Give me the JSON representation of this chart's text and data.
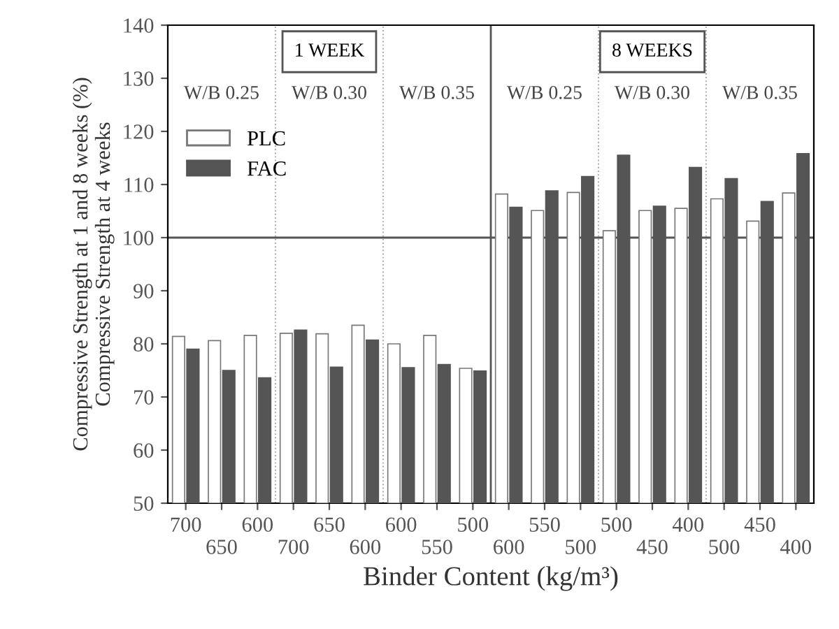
{
  "chart_data": {
    "type": "bar",
    "xlabel": "Binder Content (kg/m³)",
    "ylabel": "Compressive Strength at 1 and 8 weeks (%)\nCompressive Strength at 4 weeks",
    "categories": [
      "700",
      "650",
      "600",
      "700",
      "650",
      "600",
      "600",
      "550",
      "500",
      "600",
      "550",
      "500",
      "500",
      "450",
      "400",
      "500",
      "450",
      "400"
    ],
    "series": [
      {
        "name": "PLC",
        "color": "#ffffff",
        "values": [
          81.4,
          80.6,
          81.6,
          82.0,
          81.9,
          83.5,
          80.0,
          81.6,
          75.4,
          108.2,
          105.1,
          108.5,
          101.3,
          105.1,
          105.5,
          107.3,
          103.1,
          108.4
        ]
      },
      {
        "name": "FAC",
        "color": "#555555",
        "values": [
          79.0,
          75.0,
          73.6,
          82.6,
          75.6,
          80.7,
          75.5,
          76.1,
          74.9,
          105.7,
          108.8,
          111.5,
          115.5,
          105.9,
          113.2,
          111.1,
          106.8,
          115.8
        ]
      }
    ],
    "ylim": [
      50,
      140
    ],
    "yticks": [
      50,
      60,
      70,
      80,
      90,
      100,
      110,
      120,
      130,
      140
    ],
    "ref_lines": [
      {
        "axis": "y",
        "value": 100,
        "color": "#555555"
      }
    ],
    "annotations": [
      "1 WEEK",
      "8 WEEKS",
      "W/B 0.25",
      "W/B 0.30",
      "W/B 0.35",
      "W/B 0.25",
      "W/B 0.30",
      "W/B 0.35"
    ],
    "grid": false,
    "legend": "top left"
  }
}
